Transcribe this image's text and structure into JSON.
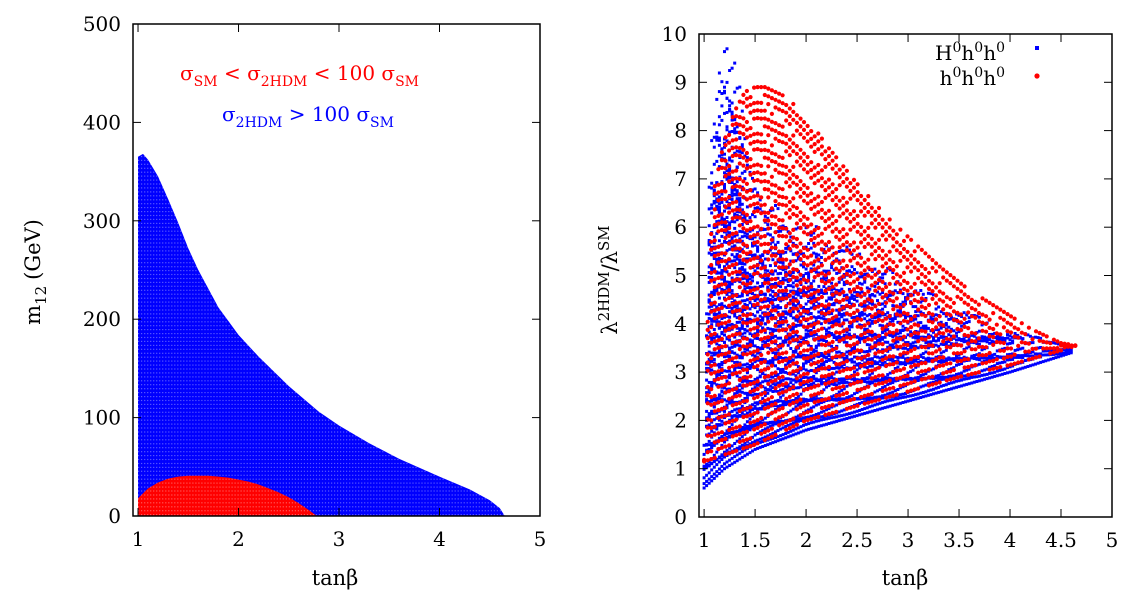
{
  "chart_data": [
    {
      "type": "scatter",
      "xlabel": "tanβ",
      "ylabel_base": "m",
      "ylabel_sub": "12",
      "ylabel_unit": "(GeV)",
      "xlim": [
        0.95,
        5
      ],
      "ylim": [
        0,
        500
      ],
      "xticks": [
        1,
        2,
        3,
        4,
        5
      ],
      "yticks": [
        0,
        100,
        200,
        300,
        400,
        500
      ],
      "grid": false,
      "legend_position": "top-right (inside)",
      "regions": [
        {
          "name_parts": [
            "σ",
            "SM",
            " < σ",
            "2HDM",
            " < 100 σ",
            "SM"
          ],
          "color": "#ff0000",
          "boundary_tanb": [
            1.0,
            1.1,
            1.2,
            1.3,
            1.4,
            1.5,
            1.6,
            1.7,
            1.8,
            1.9,
            2.0,
            2.1,
            2.2,
            2.3,
            2.4,
            2.5,
            2.6,
            2.7,
            2.78
          ],
          "boundary_m12": [
            18,
            28,
            34,
            38,
            40,
            41,
            41,
            41,
            40,
            39,
            37,
            35,
            32,
            28,
            24,
            19,
            13,
            6,
            0
          ]
        },
        {
          "name_parts": [
            "σ",
            "2HDM",
            " > 100 σ",
            "SM"
          ],
          "color": "#0000ff",
          "boundary_tanb": [
            1.0,
            1.05,
            1.1,
            1.2,
            1.3,
            1.4,
            1.5,
            1.6,
            1.8,
            2.0,
            2.2,
            2.5,
            2.8,
            3.0,
            3.3,
            3.6,
            4.0,
            4.3,
            4.5,
            4.6,
            4.65
          ],
          "boundary_m12": [
            365,
            368,
            362,
            345,
            322,
            298,
            272,
            250,
            212,
            184,
            162,
            132,
            106,
            92,
            74,
            58,
            40,
            27,
            16,
            8,
            0
          ]
        }
      ]
    },
    {
      "type": "scatter",
      "xlabel": "tanβ",
      "ylabel_base": "λ",
      "ylabel_sup1": "2HDM",
      "ylabel_mid": "/λ",
      "ylabel_sup2": "SM",
      "xlim": [
        0.95,
        5
      ],
      "ylim": [
        0,
        10
      ],
      "xticks": [
        1,
        1.5,
        2,
        2.5,
        3,
        3.5,
        4,
        4.5,
        5
      ],
      "yticks": [
        0,
        1,
        2,
        3,
        4,
        5,
        6,
        7,
        8,
        9,
        10
      ],
      "grid": false,
      "legend_position": "top-right",
      "series": [
        {
          "name_parts": [
            "H",
            "0",
            "h",
            "0",
            "h",
            "0"
          ],
          "color": "#0000ff",
          "upper_x": [
            1.0,
            1.05,
            1.1,
            1.15,
            1.2,
            1.25,
            1.3,
            1.35,
            1.4,
            1.5,
            1.6,
            1.8,
            2.0,
            2.3,
            2.6,
            3.0,
            3.5,
            4.0,
            4.6
          ],
          "upper_y": [
            1.5,
            7.0,
            8.6,
            9.3,
            9.7,
            9.7,
            9.4,
            8.9,
            8.0,
            7.0,
            6.6,
            6.3,
            6.2,
            5.7,
            5.4,
            4.9,
            4.3,
            3.9,
            3.5
          ],
          "lower_x": [
            1.0,
            1.2,
            1.5,
            2.0,
            2.5,
            3.0,
            3.5,
            4.0,
            4.6
          ],
          "lower_y": [
            0.6,
            1.0,
            1.4,
            1.8,
            2.1,
            2.4,
            2.7,
            3.0,
            3.4
          ]
        },
        {
          "name_parts": [
            "h",
            "0",
            "h",
            "0",
            "h",
            "0"
          ],
          "color": "#ff0000",
          "upper_x": [
            1.0,
            1.05,
            1.1,
            1.2,
            1.3,
            1.4,
            1.5,
            1.6,
            1.7,
            1.8,
            1.9,
            2.0,
            2.1,
            2.2,
            2.5,
            2.8,
            3.0,
            3.3,
            3.6,
            3.9,
            4.2,
            4.5,
            4.65
          ],
          "upper_y": [
            1.2,
            5.5,
            6.8,
            7.8,
            8.4,
            8.8,
            8.9,
            8.9,
            8.8,
            8.7,
            8.5,
            8.3,
            8.0,
            7.7,
            6.9,
            6.2,
            5.8,
            5.2,
            4.7,
            4.3,
            3.9,
            3.6,
            3.55
          ],
          "lower_x": [
            1.0,
            1.5,
            2.0,
            2.5,
            3.0,
            3.5,
            4.0,
            4.5,
            4.65
          ],
          "lower_y": [
            1.15,
            1.5,
            2.0,
            2.3,
            2.6,
            2.9,
            3.15,
            3.45,
            3.55
          ]
        }
      ]
    }
  ]
}
